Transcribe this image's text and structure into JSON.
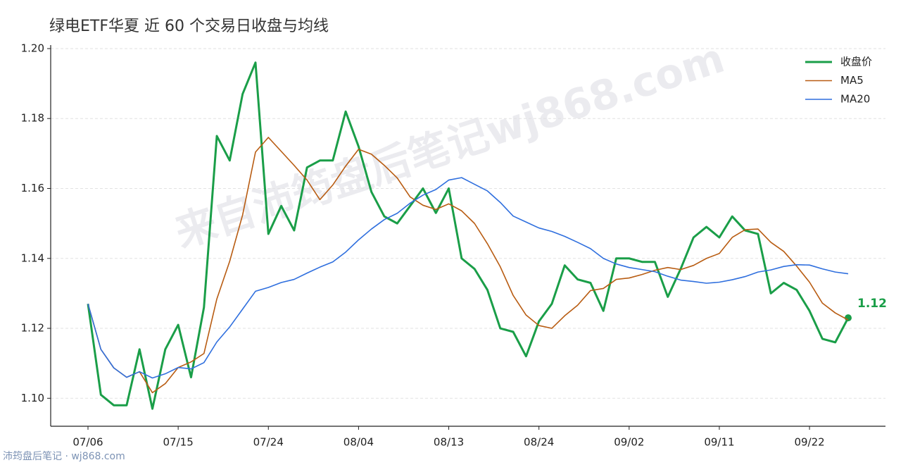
{
  "chart_data": {
    "type": "line",
    "title": "绿电ETF华夏 近 60 个交易日收盘与均线",
    "watermark": "来自沛筠盘后笔记wj868.com",
    "footer": "沛筠盘后笔记 · wj868.com",
    "categories": [
      "07/06",
      null,
      null,
      null,
      null,
      null,
      null,
      "07/15",
      null,
      null,
      null,
      null,
      null,
      null,
      "07/24",
      null,
      null,
      null,
      null,
      null,
      null,
      "08/04",
      null,
      null,
      null,
      null,
      null,
      null,
      "08/13",
      null,
      null,
      null,
      null,
      null,
      null,
      "08/24",
      null,
      null,
      null,
      null,
      null,
      null,
      "09/02",
      null,
      null,
      null,
      null,
      null,
      null,
      "09/11",
      null,
      null,
      null,
      null,
      null,
      null,
      "09/22",
      null,
      null,
      null
    ],
    "ylim": [
      1.092,
      1.201
    ],
    "yticks": [
      {
        "value": 1.1,
        "label": "1.10"
      },
      1.12,
      1.14,
      1.16,
      1.18,
      {
        "value": 1.2,
        "label": "1.20"
      }
    ],
    "grid": true,
    "legend": "upper right",
    "series": [
      {
        "name": "收盘价",
        "color": "#1a9e48",
        "values": [
          1.127,
          1.101,
          1.098,
          1.098,
          1.114,
          1.097,
          1.114,
          1.121,
          1.106,
          1.126,
          1.175,
          1.168,
          1.187,
          1.196,
          1.147,
          1.155,
          1.148,
          1.166,
          1.168,
          1.168,
          1.182,
          1.172,
          1.159,
          1.152,
          1.15,
          1.155,
          1.16,
          1.153,
          1.16,
          1.14,
          1.137,
          1.131,
          1.12,
          1.119,
          1.112,
          1.122,
          1.127,
          1.138,
          1.134,
          1.133,
          1.125,
          1.14,
          1.14,
          1.139,
          1.139,
          1.129,
          1.137,
          1.146,
          1.149,
          1.146,
          1.152,
          1.148,
          1.147,
          1.13,
          1.133,
          1.131,
          1.125,
          1.117,
          1.116,
          1.123
        ],
        "value_labels": [
          null,
          null,
          null,
          null,
          null,
          null,
          null,
          null,
          null,
          null,
          null,
          null,
          null,
          null,
          null,
          null,
          null,
          null,
          null,
          null,
          null,
          null,
          null,
          null,
          null,
          null,
          null,
          null,
          null,
          null,
          null,
          null,
          null,
          null,
          null,
          null,
          null,
          null,
          null,
          null,
          null,
          null,
          null,
          null,
          null,
          null,
          null,
          null,
          null,
          null,
          null,
          null,
          null,
          null,
          null,
          null,
          null,
          null,
          null,
          "1.12"
        ]
      },
      {
        "name": "MA5",
        "color": "#b85c12",
        "values": [
          1.127,
          1.114,
          1.1087,
          1.106,
          1.1076,
          1.1016,
          1.1042,
          1.1088,
          1.1104,
          1.1128,
          1.1284,
          1.1392,
          1.1524,
          1.1704,
          1.1746,
          1.1706,
          1.1666,
          1.1624,
          1.1568,
          1.161,
          1.1664,
          1.1712,
          1.1698,
          1.1666,
          1.163,
          1.1576,
          1.1552,
          1.154,
          1.1556,
          1.1536,
          1.15,
          1.1442,
          1.1376,
          1.1294,
          1.1238,
          1.1208,
          1.12,
          1.1236,
          1.1266,
          1.1308,
          1.1314,
          1.134,
          1.1344,
          1.1354,
          1.1366,
          1.1374,
          1.1368,
          1.138,
          1.14,
          1.1414,
          1.146,
          1.1482,
          1.1484,
          1.1446,
          1.142,
          1.1378,
          1.1332,
          1.1272,
          1.1244,
          1.1224
        ]
      },
      {
        "name": "MA20",
        "color": "#2f6fde",
        "values": [
          1.127,
          1.114,
          1.1087,
          1.106,
          1.1076,
          1.1058,
          1.107,
          1.1088,
          1.1084,
          1.1102,
          1.1161,
          1.1204,
          1.1255,
          1.1306,
          1.1317,
          1.1331,
          1.134,
          1.1358,
          1.1375,
          1.139,
          1.1418,
          1.1453,
          1.1484,
          1.1511,
          1.1529,
          1.1558,
          1.1581,
          1.1597,
          1.1624,
          1.1631,
          1.1612,
          1.1593,
          1.156,
          1.1521,
          1.1504,
          1.1487,
          1.1477,
          1.1463,
          1.1446,
          1.1428,
          1.14,
          1.1384,
          1.1374,
          1.1368,
          1.1362,
          1.1349,
          1.1338,
          1.1334,
          1.1329,
          1.1332,
          1.1339,
          1.1348,
          1.1361,
          1.1367,
          1.1377,
          1.1382,
          1.1381,
          1.137,
          1.1361,
          1.1356
        ]
      }
    ]
  }
}
